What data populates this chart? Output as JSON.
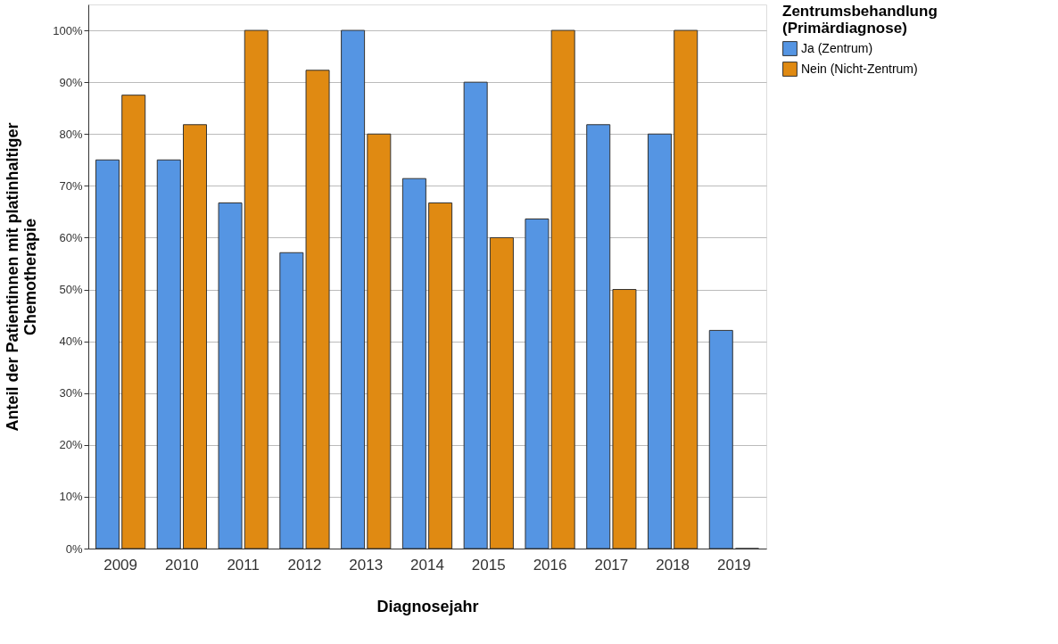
{
  "chart_data": {
    "type": "bar",
    "xlabel": "Diagnosejahr",
    "ylabel": "Anteil der Patientinnen mit platinhaltiger\nChemotherapie",
    "legend_title": "Zentrumsbehandlung\n(Primärdiagnose)",
    "categories": [
      "2009",
      "2010",
      "2011",
      "2012",
      "2013",
      "2014",
      "2015",
      "2016",
      "2017",
      "2018",
      "2019"
    ],
    "series": [
      {
        "name": "Ja (Zentrum)",
        "color": "#5595e3",
        "values": [
          75,
          75,
          66.7,
          57.1,
          100,
          71.4,
          90,
          63.6,
          81.8,
          80,
          42.1
        ]
      },
      {
        "name": "Nein (Nicht-Zentrum)",
        "color": "#e08a12",
        "values": [
          87.5,
          81.8,
          100,
          92.3,
          80,
          66.7,
          60,
          100,
          50,
          100,
          0
        ]
      }
    ],
    "ylim": [
      0,
      105
    ],
    "yticks": [
      {
        "value": 0,
        "label": "0%"
      },
      {
        "value": 10,
        "label": "10%"
      },
      {
        "value": 20,
        "label": "20%"
      },
      {
        "value": 30,
        "label": "30%"
      },
      {
        "value": 40,
        "label": "40%"
      },
      {
        "value": 50,
        "label": "50%"
      },
      {
        "value": 60,
        "label": "60%"
      },
      {
        "value": 70,
        "label": "70%"
      },
      {
        "value": 80,
        "label": "80%"
      },
      {
        "value": 90,
        "label": "90%"
      },
      {
        "value": 100,
        "label": "100%"
      }
    ],
    "grid": "y",
    "legend": "top right"
  }
}
